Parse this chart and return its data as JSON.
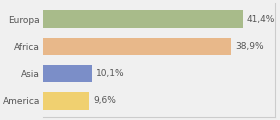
{
  "categories": [
    "Europa",
    "Africa",
    "Asia",
    "America"
  ],
  "values": [
    41.4,
    38.9,
    10.1,
    9.6
  ],
  "labels": [
    "41,4%",
    "38,9%",
    "10,1%",
    "9,6%"
  ],
  "bar_colors": [
    "#a8bb8a",
    "#e8b88a",
    "#7b8ec8",
    "#f0d070"
  ],
  "background_color": "#f0f0f0",
  "xlim": [
    0,
    48
  ],
  "bar_height": 0.65,
  "label_fontsize": 6.5,
  "cat_fontsize": 6.5,
  "spine_color": "#cccccc"
}
